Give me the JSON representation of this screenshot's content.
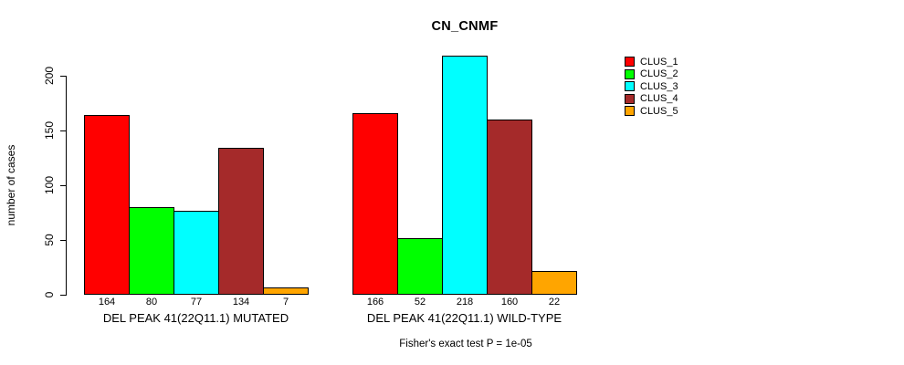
{
  "chart_data": {
    "type": "bar",
    "title": "CN_CNMF",
    "ylabel": "number of cases",
    "xlabel": "",
    "ylim": [
      0,
      200
    ],
    "yticks": [
      0,
      50,
      100,
      150,
      200
    ],
    "grid": false,
    "legend_position": "right",
    "bar_value_labels": true,
    "series": [
      {
        "name": "CLUS_1",
        "color": "#FF0000"
      },
      {
        "name": "CLUS_2",
        "color": "#00FF00"
      },
      {
        "name": "CLUS_3",
        "color": "#00FFFF"
      },
      {
        "name": "CLUS_4",
        "color": "#A52A2A"
      },
      {
        "name": "CLUS_5",
        "color": "#FFA500"
      }
    ],
    "categories": [
      "DEL PEAK 41(22Q11.1) MUTATED",
      "DEL PEAK 41(22Q11.1) WILD-TYPE"
    ],
    "groups": [
      {
        "label": "DEL PEAK 41(22Q11.1) MUTATED",
        "values": [
          164,
          80,
          77,
          134,
          7
        ]
      },
      {
        "label": "DEL PEAK 41(22Q11.1) WILD-TYPE",
        "values": [
          166,
          52,
          218,
          160,
          22
        ]
      }
    ],
    "annotation": "Fisher's exact test P = 1e-05"
  }
}
